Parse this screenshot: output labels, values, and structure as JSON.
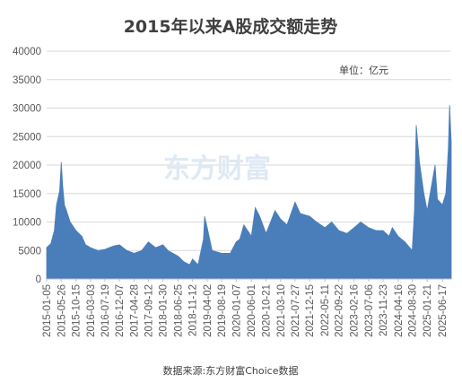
{
  "chart_data": {
    "type": "area",
    "title": "2015年以来A股成交额走势",
    "unit_label": "单位：亿元",
    "source": "数据来源:东方财富Choice数据",
    "watermark": "东方财富",
    "color": "#4a7ebb",
    "ylim": [
      0,
      40000
    ],
    "yticks": [
      0,
      5000,
      10000,
      15000,
      20000,
      25000,
      30000,
      35000,
      40000
    ],
    "grid": true,
    "xlim": [
      "2015-01-05",
      "2025-09-10"
    ],
    "xticks": [
      "2015-01-05",
      "2015-05-26",
      "2015-10-15",
      "2016-03-03",
      "2016-07-19",
      "2016-12-07",
      "2017-04-28",
      "2017-09-12",
      "2018-01-30",
      "2018-06-25",
      "2018-11-12",
      "2019-04-02",
      "2019-08-19",
      "2020-01-07",
      "2020-06-01",
      "2020-10-21",
      "2021-03-10",
      "2021-07-27",
      "2021-12-15",
      "2022-05-11",
      "2022-09-22",
      "2023-02-16",
      "2023-07-06",
      "2023-11-23",
      "2024-04-16",
      "2024-08-30",
      "2025-01-21",
      "2025-06-17"
    ],
    "series": [
      {
        "x": [
          "2015-01-05",
          "2015-02-15",
          "2015-03-20",
          "2015-04-10",
          "2015-05-10",
          "2015-05-26",
          "2015-06-08",
          "2015-06-25",
          "2015-07-15",
          "2015-08-20",
          "2015-10-15",
          "2015-12-10",
          "2016-01-15",
          "2016-03-03",
          "2016-05-15",
          "2016-07-19",
          "2016-10-10",
          "2016-12-07",
          "2017-02-15",
          "2017-04-28",
          "2017-07-10",
          "2017-09-12",
          "2017-11-20",
          "2018-01-30",
          "2018-03-20",
          "2018-06-25",
          "2018-08-20",
          "2018-10-15",
          "2018-11-12",
          "2019-01-04",
          "2019-02-25",
          "2019-03-08",
          "2019-04-02",
          "2019-05-20",
          "2019-08-19",
          "2019-11-10",
          "2020-01-07",
          "2020-02-10",
          "2020-03-20",
          "2020-06-01",
          "2020-07-09",
          "2020-08-20",
          "2020-10-21",
          "2021-01-15",
          "2021-03-10",
          "2021-05-10",
          "2021-07-27",
          "2021-09-15",
          "2021-12-15",
          "2022-02-20",
          "2022-05-11",
          "2022-07-15",
          "2022-09-22",
          "2022-12-10",
          "2023-02-16",
          "2023-04-20",
          "2023-07-06",
          "2023-09-15",
          "2023-11-23",
          "2024-01-20",
          "2024-02-20",
          "2024-04-16",
          "2024-06-20",
          "2024-08-30",
          "2024-09-20",
          "2024-10-08",
          "2024-11-08",
          "2024-12-20",
          "2025-01-21",
          "2025-03-10",
          "2025-04-07",
          "2025-04-30",
          "2025-06-17",
          "2025-07-20",
          "2025-08-13",
          "2025-08-25",
          "2025-09-10"
        ],
        "values": [
          5500,
          6200,
          8500,
          13000,
          15500,
          20500,
          16500,
          13000,
          12000,
          10000,
          8500,
          7500,
          6000,
          5500,
          5000,
          5200,
          5800,
          6000,
          5000,
          4500,
          5000,
          6500,
          5500,
          6000,
          5000,
          4000,
          3000,
          2500,
          3500,
          2500,
          7000,
          11000,
          9000,
          5000,
          4500,
          4500,
          6500,
          7000,
          9500,
          7500,
          12500,
          11000,
          8000,
          12000,
          10500,
          9500,
          13500,
          11500,
          11000,
          10000,
          9000,
          10000,
          8500,
          8000,
          9000,
          10000,
          9000,
          8500,
          8500,
          7500,
          9000,
          7500,
          6500,
          5000,
          12000,
          27000,
          20500,
          15000,
          12000,
          17000,
          20000,
          14000,
          13000,
          15000,
          23000,
          30500,
          24000
        ]
      }
    ]
  }
}
